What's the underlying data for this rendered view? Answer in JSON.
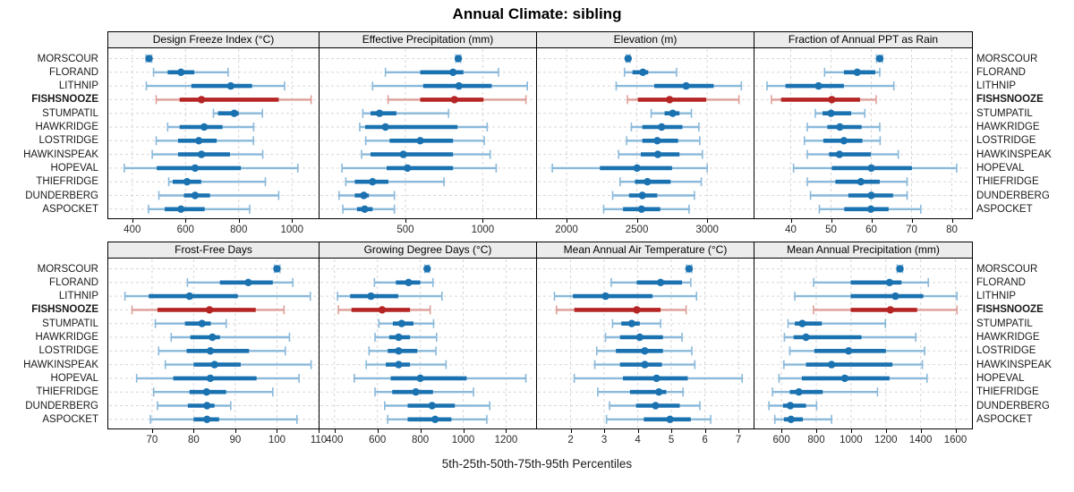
{
  "title": "Annual Climate: sibling",
  "caption": "5th-25th-50th-75th-95th Percentiles",
  "percentile_labels": [
    "5th",
    "25th",
    "50th",
    "75th",
    "95th"
  ],
  "stations": [
    "MORSCOUR",
    "FLORAND",
    "LITHNIP",
    "FISHSNOOZE",
    "STUMPATIL",
    "HAWKRIDGE",
    "LOSTRIDGE",
    "HAWKINSPEAK",
    "HOPEVAL",
    "THIEFRIDGE",
    "DUNDERBERG",
    "ASPOCKET"
  ],
  "highlight_station": "FISHSNOOZE",
  "colors": {
    "series_main": "#1b72b0",
    "series_light": "#8ab9da",
    "highlight_main": "#b52524",
    "highlight_light": "#de9f99",
    "grid": "#d7d7d7",
    "strip_bg": "#ececec",
    "panel_border": "#000000",
    "text": "#1a1a1a"
  },
  "chart_data": [
    {
      "type": "scatter",
      "style": "percentile-whisker",
      "title": "Design Freeze Index (°C)",
      "row": 0,
      "col": 0,
      "xlim": [
        310,
        1100
      ],
      "xticks": [
        400,
        600,
        800,
        1000
      ],
      "values": [
        [
          452,
          459,
          463,
          468,
          473
        ],
        [
          480,
          533,
          583,
          633,
          760
        ],
        [
          453,
          622,
          770,
          850,
          972
        ],
        [
          490,
          578,
          660,
          950,
          1072
        ],
        [
          705,
          722,
          783,
          800,
          889
        ],
        [
          533,
          578,
          670,
          739,
          856
        ],
        [
          490,
          572,
          650,
          717,
          855
        ],
        [
          475,
          572,
          660,
          767,
          890
        ],
        [
          370,
          492,
          636,
          808,
          1022
        ],
        [
          537,
          552,
          606,
          659,
          900
        ],
        [
          500,
          594,
          636,
          692,
          950
        ],
        [
          461,
          522,
          583,
          672,
          841
        ]
      ]
    },
    {
      "type": "scatter",
      "style": "percentile-whisker",
      "title": "Effective Precipitation (mm)",
      "row": 0,
      "col": 1,
      "xlim": [
        -55,
        1345
      ],
      "xticks": [
        500,
        1000
      ],
      "values": [
        [
          826,
          836,
          842,
          850,
          858
        ],
        [
          371,
          596,
          808,
          875,
          1102
        ],
        [
          288,
          615,
          846,
          1058,
          1288
        ],
        [
          388,
          596,
          817,
          1005,
          1279
        ],
        [
          225,
          275,
          333,
          442,
          779
        ],
        [
          205,
          240,
          371,
          837,
          1029
        ],
        [
          244,
          398,
          596,
          808,
          1010
        ],
        [
          217,
          275,
          487,
          808,
          1048
        ],
        [
          90,
          379,
          513,
          808,
          1087
        ],
        [
          115,
          173,
          288,
          390,
          750
        ],
        [
          71,
          173,
          231,
          264,
          429
        ],
        [
          96,
          187,
          237,
          288,
          429
        ]
      ]
    },
    {
      "type": "scatter",
      "style": "percentile-whisker",
      "title": "Elevation (m)",
      "row": 0,
      "col": 2,
      "xlim": [
        1790,
        3330
      ],
      "xticks": [
        2000,
        2500,
        3000
      ],
      "values": [
        [
          2424,
          2432,
          2438,
          2445,
          2452
        ],
        [
          2412,
          2469,
          2543,
          2581,
          2782
        ],
        [
          2353,
          2624,
          2850,
          3046,
          3243
        ],
        [
          2433,
          2507,
          2733,
          2993,
          3226
        ],
        [
          2602,
          2697,
          2755,
          2803,
          2888
        ],
        [
          2461,
          2539,
          2676,
          2824,
          2941
        ],
        [
          2427,
          2539,
          2645,
          2793,
          2947
        ],
        [
          2370,
          2528,
          2649,
          2803,
          2966
        ],
        [
          1899,
          2237,
          2501,
          2750,
          3000
        ],
        [
          2381,
          2486,
          2575,
          2740,
          2958
        ],
        [
          2328,
          2444,
          2539,
          2645,
          2909
        ],
        [
          2264,
          2402,
          2533,
          2666,
          2871
        ]
      ]
    },
    {
      "type": "scatter",
      "style": "percentile-whisker",
      "title": "Fraction of Annual PPT as Rain",
      "row": 0,
      "col": 3,
      "xlim": [
        31,
        85
      ],
      "xticks": [
        40,
        50,
        60,
        70,
        80
      ],
      "values": [
        [
          61.3,
          61.8,
          62.1,
          62.4,
          62.8
        ],
        [
          48.4,
          53.2,
          56.5,
          61.0,
          62.1
        ],
        [
          34.1,
          38.7,
          46.9,
          53.2,
          65.6
        ],
        [
          35.2,
          37.6,
          50.2,
          57.2,
          61.2
        ],
        [
          46.1,
          47.9,
          50.0,
          55.0,
          58.4
        ],
        [
          44.1,
          49.1,
          52.2,
          57.6,
          62.1
        ],
        [
          43.4,
          48.1,
          53.2,
          57.8,
          62.2
        ],
        [
          44.1,
          49.5,
          52.1,
          59.9,
          66.7
        ],
        [
          40.7,
          50.2,
          60.0,
          70.1,
          81.2
        ],
        [
          44.1,
          51.1,
          57.4,
          62.1,
          68.9
        ],
        [
          44.9,
          54.3,
          60.0,
          65.4,
          68.9
        ],
        [
          47.1,
          53.3,
          59.9,
          64.3,
          72.3
        ]
      ]
    },
    {
      "type": "scatter",
      "style": "percentile-whisker",
      "title": "Frost-Free Days",
      "row": 1,
      "col": 0,
      "xlim": [
        59.5,
        110
      ],
      "xticks": [
        70,
        80,
        90,
        100,
        110
      ],
      "values": [
        [
          99.4,
          99.8,
          100.0,
          100.3,
          100.7
        ],
        [
          78.5,
          86.3,
          93.1,
          99.0,
          103.8
        ],
        [
          63.5,
          69.2,
          79.0,
          90.6,
          108.0
        ],
        [
          65.2,
          71.3,
          83.8,
          94.9,
          101.7
        ],
        [
          70.8,
          77.9,
          82.0,
          84.1,
          87.8
        ],
        [
          74.6,
          79.2,
          84.5,
          86.3,
          103.0
        ],
        [
          71.6,
          78.3,
          84.0,
          93.3,
          102.0
        ],
        [
          73.2,
          80.0,
          85.0,
          91.3,
          108.2
        ],
        [
          66.3,
          75.1,
          84.0,
          95.1,
          105.3
        ],
        [
          70.4,
          79.0,
          83.1,
          87.8,
          99.0
        ],
        [
          71.3,
          78.6,
          83.2,
          85.0,
          88.9
        ],
        [
          69.6,
          80.0,
          83.2,
          86.1,
          104.8
        ]
      ]
    },
    {
      "type": "scatter",
      "style": "percentile-whisker",
      "title": "Growing Degree Days (°C)",
      "row": 1,
      "col": 1,
      "xlim": [
        330,
        1340
      ],
      "xticks": [
        400,
        600,
        800,
        1000,
        1200
      ],
      "values": [
        [
          821,
          828,
          832,
          836,
          841
        ],
        [
          586,
          686,
          745,
          800,
          859
        ],
        [
          414,
          473,
          570,
          697,
          901
        ],
        [
          418,
          479,
          622,
          752,
          846
        ],
        [
          607,
          672,
          713,
          768,
          862
        ],
        [
          589,
          655,
          699,
          752,
          876
        ],
        [
          561,
          648,
          699,
          786,
          873
        ],
        [
          548,
          639,
          699,
          752,
          920
        ],
        [
          492,
          662,
          800,
          1016,
          1292
        ],
        [
          589,
          669,
          779,
          859,
          1048
        ],
        [
          634,
          741,
          855,
          961,
          1124
        ],
        [
          648,
          741,
          869,
          945,
          1110
        ]
      ]
    },
    {
      "type": "scatter",
      "style": "percentile-whisker",
      "title": "Mean Annual Air Temperature (°C)",
      "row": 1,
      "col": 2,
      "xlim": [
        1.0,
        7.45
      ],
      "xticks": [
        2,
        3,
        4,
        5,
        6,
        7
      ],
      "values": [
        [
          5.45,
          5.5,
          5.53,
          5.57,
          5.61
        ],
        [
          3.21,
          3.97,
          4.68,
          5.32,
          5.58
        ],
        [
          1.52,
          2.07,
          3.04,
          4.44,
          5.75
        ],
        [
          1.58,
          2.11,
          3.97,
          4.68,
          5.44
        ],
        [
          3.25,
          3.51,
          3.82,
          4.06,
          4.68
        ],
        [
          3.04,
          3.47,
          4.06,
          4.75,
          5.32
        ],
        [
          2.78,
          3.35,
          4.21,
          4.75,
          5.61
        ],
        [
          2.72,
          3.47,
          4.21,
          4.72,
          5.7
        ],
        [
          2.11,
          3.56,
          4.56,
          5.49,
          7.11
        ],
        [
          2.81,
          3.77,
          4.63,
          4.85,
          5.35
        ],
        [
          3.16,
          3.95,
          4.53,
          5.25,
          5.85
        ],
        [
          3.07,
          4.18,
          4.96,
          5.58,
          6.17
        ]
      ]
    },
    {
      "type": "scatter",
      "style": "percentile-whisker",
      "title": "Mean Annual Precipitation (mm)",
      "row": 1,
      "col": 3,
      "xlim": [
        445,
        1695
      ],
      "xticks": [
        600,
        800,
        1000,
        1200,
        1400,
        1600
      ],
      "values": [
        [
          1265,
          1274,
          1281,
          1289,
          1296
        ],
        [
          785,
          998,
          1221,
          1290,
          1444
        ],
        [
          677,
          998,
          1255,
          1415,
          1609
        ],
        [
          784,
          998,
          1226,
          1380,
          1609
        ],
        [
          638,
          677,
          720,
          832,
          1197
        ],
        [
          617,
          670,
          741,
          1060,
          1372
        ],
        [
          648,
          789,
          986,
          1200,
          1423
        ],
        [
          614,
          741,
          888,
          1238,
          1410
        ],
        [
          586,
          717,
          964,
          1221,
          1437
        ],
        [
          549,
          648,
          700,
          837,
          1152
        ],
        [
          528,
          609,
          651,
          741,
          802
        ],
        [
          562,
          614,
          655,
          723,
          888
        ]
      ]
    }
  ]
}
